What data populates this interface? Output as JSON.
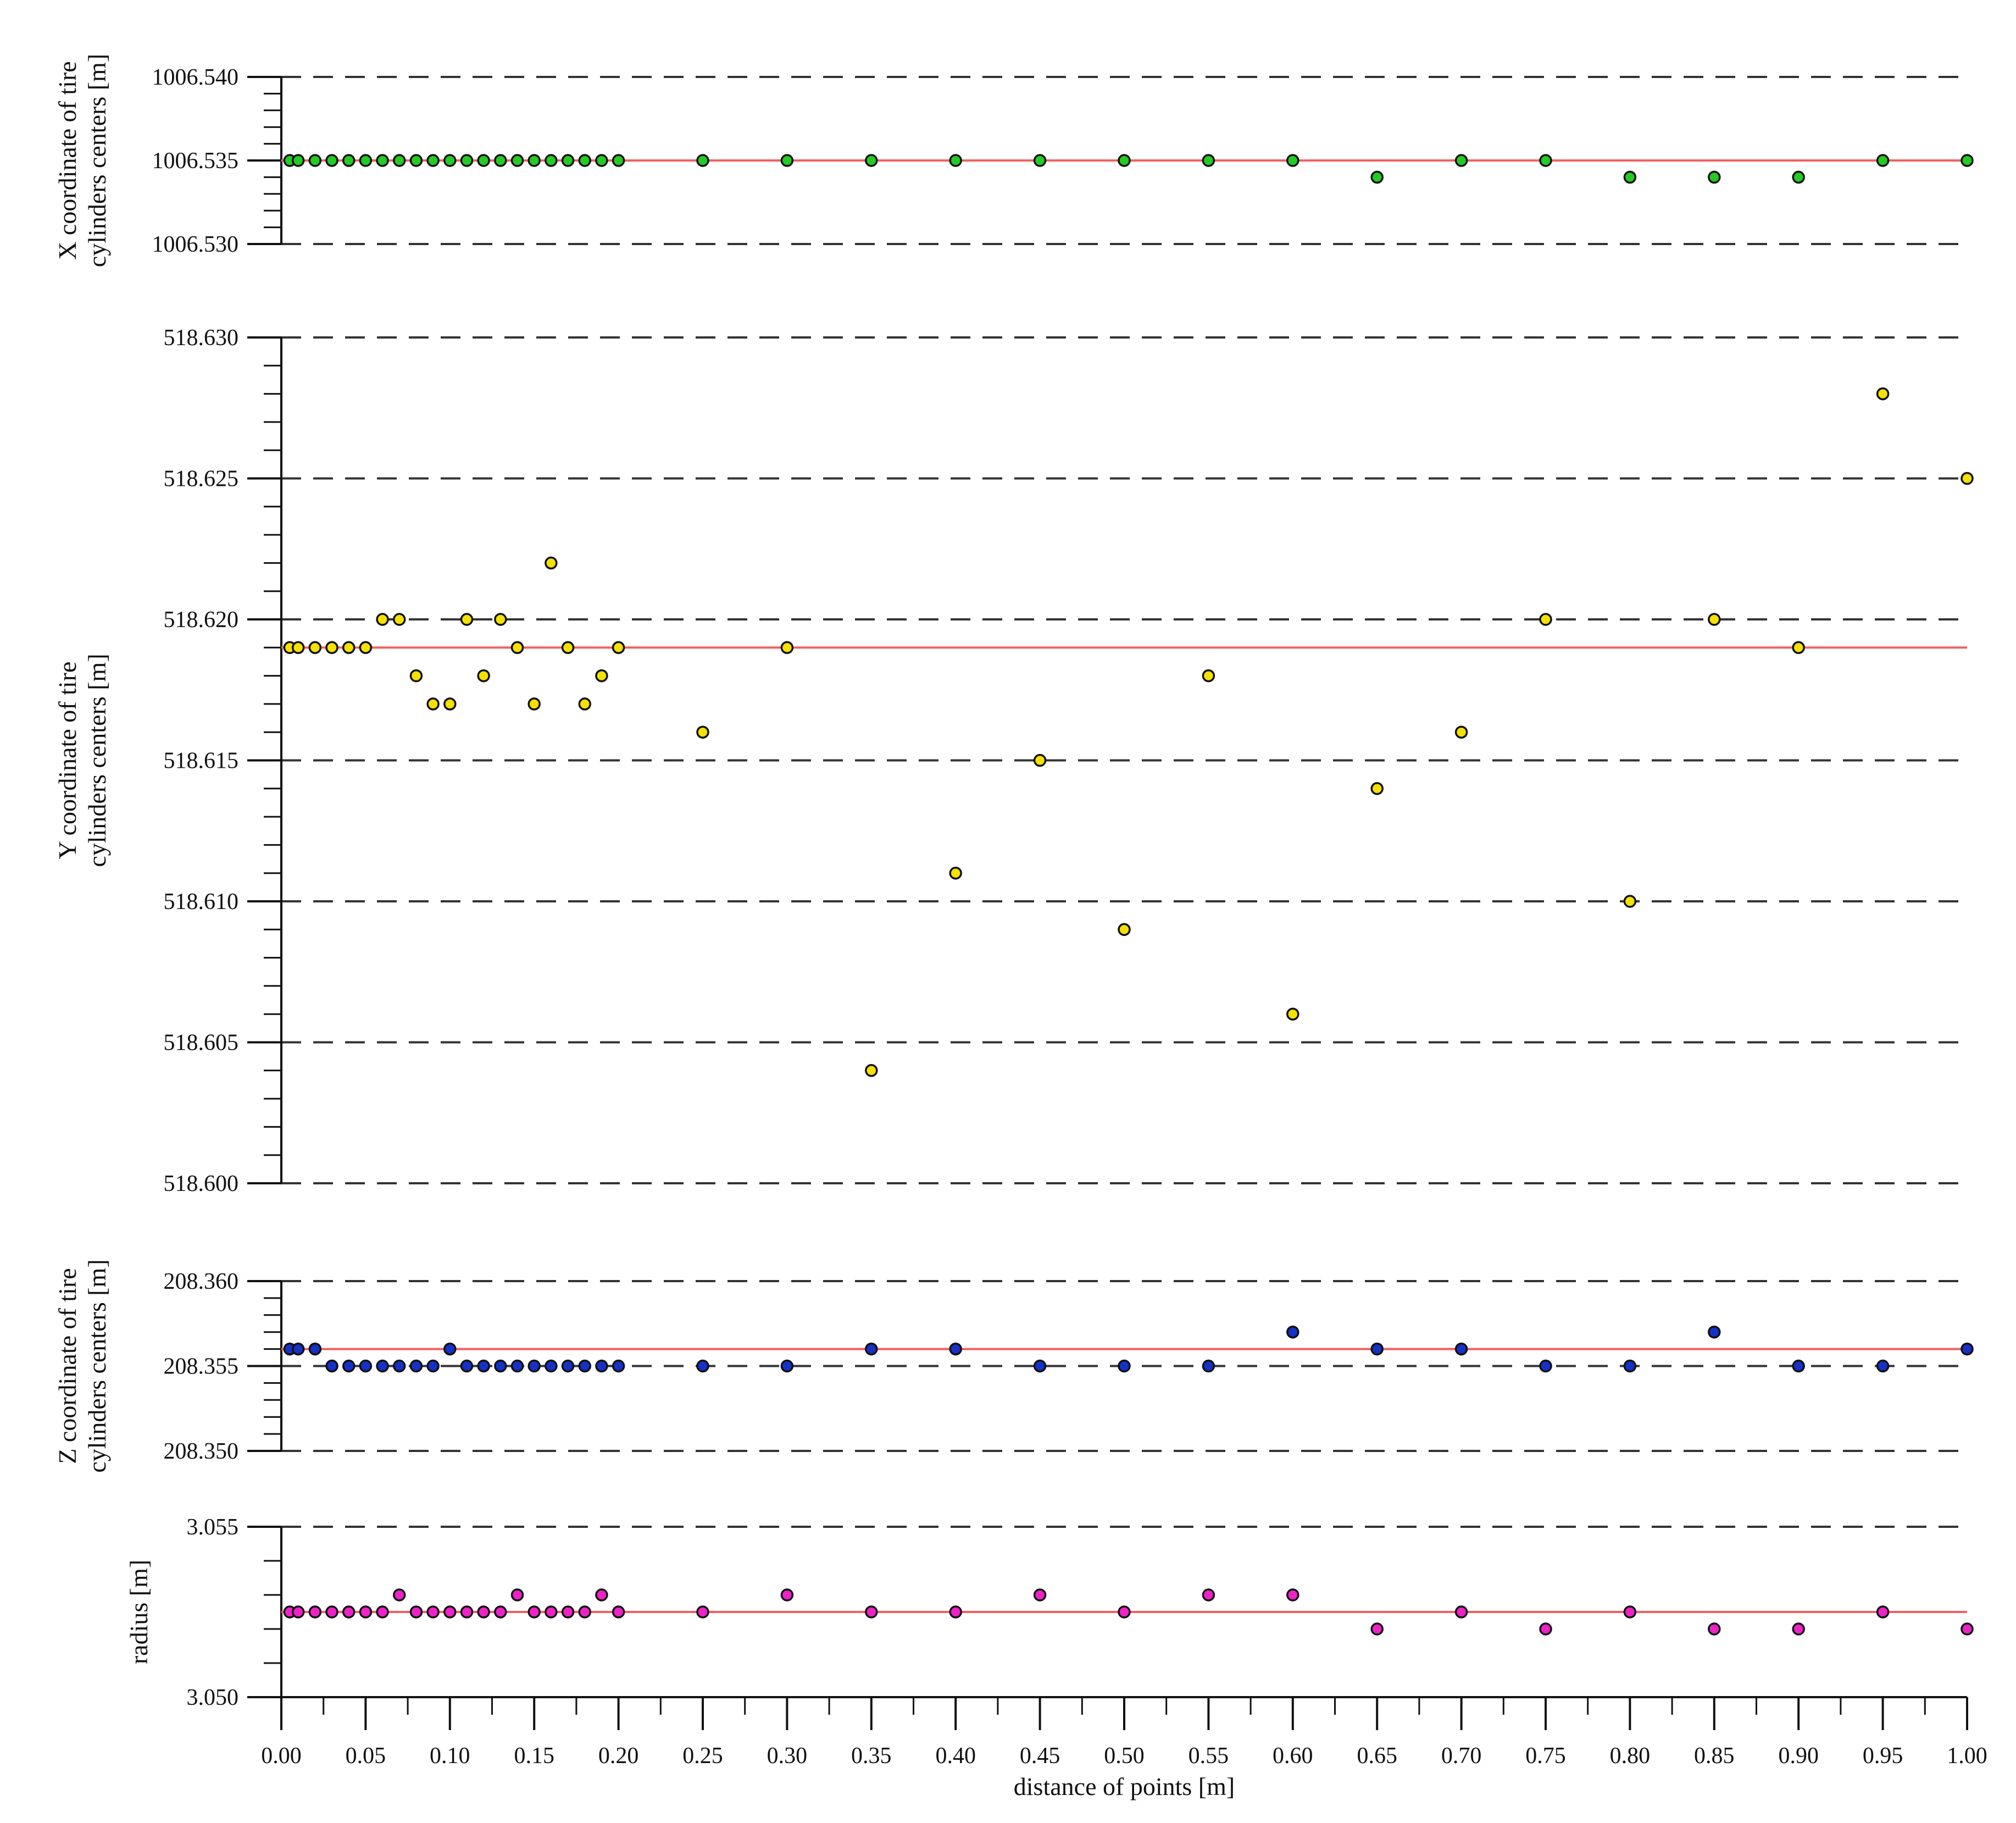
{
  "chart_data": {
    "type": "scatter",
    "x_axis": {
      "label": "distance of points [m]",
      "range": [
        0,
        1
      ],
      "ticks": [
        "0.00",
        "0.05",
        "0.10",
        "0.15",
        "0.20",
        "0.25",
        "0.30",
        "0.35",
        "0.40",
        "0.45",
        "0.50",
        "0.55",
        "0.60",
        "0.65",
        "0.70",
        "0.75",
        "0.80",
        "0.85",
        "0.90",
        "0.95",
        "1.00"
      ]
    },
    "x": [
      0.005,
      0.01,
      0.02,
      0.03,
      0.04,
      0.05,
      0.06,
      0.07,
      0.08,
      0.09,
      0.1,
      0.11,
      0.12,
      0.13,
      0.14,
      0.15,
      0.16,
      0.17,
      0.18,
      0.19,
      0.2,
      0.25,
      0.3,
      0.35,
      0.4,
      0.45,
      0.5,
      0.55,
      0.6,
      0.65,
      0.7,
      0.75,
      0.8,
      0.85,
      0.9,
      0.95,
      1.0
    ],
    "panels": [
      {
        "ylabel": [
          "X coordinate of tire",
          "cylinders centers [m]"
        ],
        "ylim": [
          1006.53,
          1006.54
        ],
        "ticks": [
          "1006.530",
          "1006.535",
          "1006.540"
        ],
        "reference": 1006.535,
        "marker_color": "#22cc22",
        "values": [
          1006.535,
          1006.535,
          1006.535,
          1006.535,
          1006.535,
          1006.535,
          1006.535,
          1006.535,
          1006.535,
          1006.535,
          1006.535,
          1006.535,
          1006.535,
          1006.535,
          1006.535,
          1006.535,
          1006.535,
          1006.535,
          1006.535,
          1006.535,
          1006.535,
          1006.535,
          1006.535,
          1006.535,
          1006.535,
          1006.535,
          1006.535,
          1006.535,
          1006.535,
          1006.534,
          1006.535,
          1006.535,
          1006.534,
          1006.534,
          1006.534,
          1006.535,
          1006.535
        ]
      },
      {
        "ylabel": [
          "Y coordinate of tire",
          "cylinders centers [m]"
        ],
        "ylim": [
          518.6,
          518.63
        ],
        "ticks": [
          "518.600",
          "518.605",
          "518.610",
          "518.615",
          "518.620",
          "518.625",
          "518.630"
        ],
        "reference": 518.619,
        "marker_color": "#f5e100",
        "values": [
          518.619,
          518.619,
          518.619,
          518.619,
          518.619,
          518.619,
          518.62,
          518.62,
          518.618,
          518.617,
          518.617,
          518.62,
          518.618,
          518.62,
          518.619,
          518.617,
          518.622,
          518.619,
          518.617,
          518.618,
          518.619,
          518.616,
          518.619,
          518.604,
          518.611,
          518.615,
          518.609,
          518.618,
          518.606,
          518.614,
          518.616,
          518.62,
          518.61,
          518.62,
          518.619,
          518.628,
          518.625
        ]
      },
      {
        "ylabel": [
          "Z coordinate of tire",
          "cylinders centers [m]"
        ],
        "ylim": [
          208.35,
          208.36
        ],
        "ticks": [
          "208.350",
          "208.355",
          "208.360"
        ],
        "reference": 208.356,
        "marker_color": "#1531c8",
        "values": [
          208.356,
          208.356,
          208.356,
          208.355,
          208.355,
          208.355,
          208.355,
          208.355,
          208.355,
          208.355,
          208.356,
          208.355,
          208.355,
          208.355,
          208.355,
          208.355,
          208.355,
          208.355,
          208.355,
          208.355,
          208.355,
          208.355,
          208.355,
          208.356,
          208.356,
          208.355,
          208.355,
          208.355,
          208.357,
          208.356,
          208.356,
          208.355,
          208.355,
          208.357,
          208.355,
          208.355,
          208.356
        ]
      },
      {
        "ylabel": [
          "radius [m]"
        ],
        "ylim": [
          3.05,
          3.055
        ],
        "ticks": [
          "3.050",
          "3.055"
        ],
        "reference": 3.0525,
        "marker_color": "#ee22c8",
        "values": [
          3.0525,
          3.0525,
          3.0525,
          3.0525,
          3.0525,
          3.0525,
          3.0525,
          3.053,
          3.0525,
          3.0525,
          3.0525,
          3.0525,
          3.0525,
          3.0525,
          3.053,
          3.0525,
          3.0525,
          3.0525,
          3.0525,
          3.053,
          3.0525,
          3.0525,
          3.053,
          3.0525,
          3.0525,
          3.053,
          3.0525,
          3.053,
          3.053,
          3.052,
          3.0525,
          3.052,
          3.0525,
          3.052,
          3.052,
          3.0525,
          3.052
        ]
      }
    ],
    "grid": "dashed horizontal at major ticks",
    "reference_line_color": "#f26060",
    "legend": "none"
  }
}
